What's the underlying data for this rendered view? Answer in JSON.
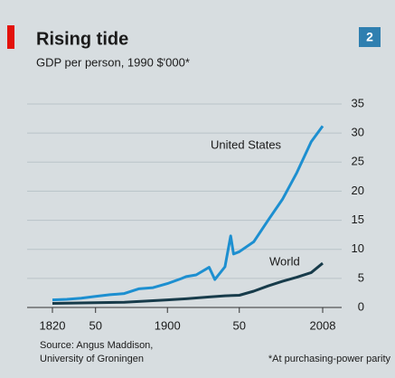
{
  "chart_data": {
    "type": "line",
    "title": "Rising tide",
    "subtitle": "GDP per person, 1990 $'000*",
    "badge": "2",
    "series": [
      {
        "name": "United States",
        "color": "#1d8fd0",
        "x": [
          1820,
          1830,
          1840,
          1850,
          1860,
          1870,
          1880,
          1890,
          1900,
          1910,
          1913,
          1920,
          1929,
          1933,
          1940,
          1944,
          1946,
          1950,
          1960,
          1970,
          1980,
          1990,
          2000,
          2008
        ],
        "values": [
          1.3,
          1.4,
          1.6,
          1.9,
          2.2,
          2.4,
          3.2,
          3.4,
          4.1,
          5.0,
          5.3,
          5.6,
          6.9,
          4.8,
          7.0,
          12.3,
          9.2,
          9.6,
          11.3,
          15.0,
          18.6,
          23.2,
          28.5,
          31.2
        ]
      },
      {
        "name": "World",
        "color": "#173b4a",
        "x": [
          1820,
          1870,
          1900,
          1913,
          1929,
          1940,
          1950,
          1960,
          1970,
          1980,
          1990,
          2000,
          2008
        ],
        "values": [
          0.7,
          0.9,
          1.3,
          1.5,
          1.8,
          2.0,
          2.1,
          2.8,
          3.7,
          4.5,
          5.2,
          6.0,
          7.6
        ]
      }
    ],
    "xlim": [
      1820,
      2008
    ],
    "xticks": [
      1820,
      {
        "value": 1850,
        "label": "50"
      },
      1900,
      {
        "value": 1950,
        "label": "50"
      },
      2008
    ],
    "ylim": [
      0,
      35
    ],
    "yticks": [
      0,
      5,
      10,
      15,
      20,
      25,
      30,
      35
    ],
    "grid": true,
    "source": [
      "Source: Angus Maddison,",
      "University of Groningen"
    ],
    "footnote": "*At purchasing-power parity"
  }
}
